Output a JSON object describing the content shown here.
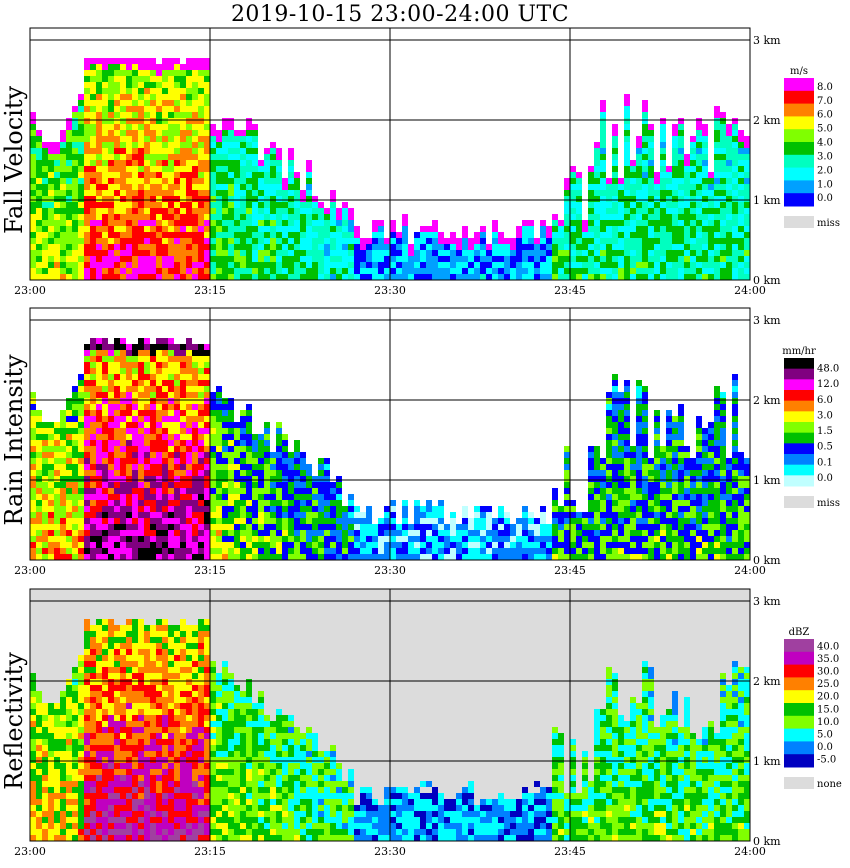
{
  "title": "2019-10-15   23:00-24:00 UTC",
  "colors": {
    "missing": "#dcdcdc",
    "grid": "#000000"
  },
  "chart_data": [
    {
      "type": "heatmap",
      "name": "Fall Velocity",
      "title": "",
      "ylabel": "Fall Velocity",
      "x_ticks": [
        "23:00",
        "23:15",
        "23:30",
        "23:45",
        "24:00"
      ],
      "y_ticks": [
        "0 km",
        "1 km",
        "2 km",
        "3 km"
      ],
      "xlim": [
        "23:00",
        "24:00"
      ],
      "ylim_km": [
        0,
        3.2
      ],
      "legend": {
        "unit": "m/s",
        "labels": [
          "8.0",
          "7.0",
          "6.0",
          "5.0",
          "4.0",
          "3.0",
          "2.0",
          "1.0",
          "0.0"
        ],
        "colors": [
          "#ff00ff",
          "#ff0000",
          "#ff8000",
          "#ffff00",
          "#80ff00",
          "#00c000",
          "#00ffc0",
          "#00ffff",
          "#00a0ff",
          "#0000ff"
        ],
        "missing_label": "miss"
      },
      "background": "#ffffff",
      "scale": "linear",
      "grid": true
    },
    {
      "type": "heatmap",
      "name": "Rain Intensity",
      "title": "",
      "ylabel": "Rain Intensity",
      "x_ticks": [
        "23:00",
        "23:15",
        "23:30",
        "23:45",
        "24:00"
      ],
      "y_ticks": [
        "0 km",
        "1 km",
        "2 km",
        "3 km"
      ],
      "xlim": [
        "23:00",
        "24:00"
      ],
      "ylim_km": [
        0,
        3.2
      ],
      "legend": {
        "unit": "mm/hr",
        "labels": [
          "48.0",
          "12.0",
          "6.0",
          "3.0",
          "1.5",
          "0.5",
          "0.1",
          "0.0"
        ],
        "colors": [
          "#000000",
          "#800080",
          "#ff00ff",
          "#ff0000",
          "#ff8000",
          "#ffff00",
          "#80ff00",
          "#00c000",
          "#0000ff",
          "#0080ff",
          "#00ffff",
          "#c0ffff"
        ],
        "missing_label": "miss"
      },
      "background": "#ffffff",
      "scale": "log",
      "grid": true
    },
    {
      "type": "heatmap",
      "name": "Reflectivity",
      "title": "",
      "ylabel": "Reflectivity",
      "x_ticks": [
        "23:00",
        "23:15",
        "23:30",
        "23:45",
        "24:00"
      ],
      "y_ticks": [
        "0 km",
        "1 km",
        "2 km",
        "3 km"
      ],
      "xlim": [
        "23:00",
        "24:00"
      ],
      "ylim_km": [
        0,
        3.2
      ],
      "legend": {
        "unit": "dBZ",
        "labels": [
          "40.0",
          "35.0",
          "30.0",
          "25.0",
          "20.0",
          "15.0",
          "10.0",
          "5.0",
          "0.0",
          "-5.0"
        ],
        "colors": [
          "#a040a0",
          "#c000c0",
          "#ff0000",
          "#ff8000",
          "#ffff00",
          "#00c000",
          "#80ff00",
          "#00ffff",
          "#0080ff",
          "#0000c0"
        ],
        "missing_label": "none"
      },
      "background": "#dcdcdc",
      "scale": "linear",
      "grid": true
    }
  ]
}
